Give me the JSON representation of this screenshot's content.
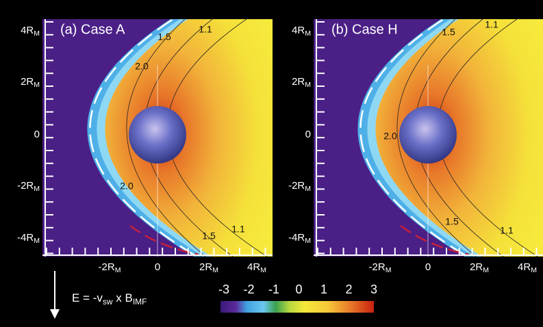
{
  "panels": [
    {
      "title": "(a) Case A",
      "y_ticks": [
        {
          "text": "4R",
          "sub": "M"
        },
        {
          "text": "2R",
          "sub": "M"
        },
        "0",
        {
          "text": "-2R",
          "sub": "M"
        },
        {
          "text": "-4R",
          "sub": "M"
        }
      ],
      "x_ticks": [
        {
          "text": "-2R",
          "sub": "M"
        },
        "0",
        {
          "text": "2R",
          "sub": "M"
        },
        {
          "text": "4R",
          "sub": "M"
        }
      ],
      "contour_labels": [
        "1.5",
        "1.1",
        "2.0",
        "2.0",
        "1.5",
        "1.1"
      ]
    },
    {
      "title": "(b) Case H",
      "y_ticks": [
        {
          "text": "4R",
          "sub": "M"
        },
        {
          "text": "2R",
          "sub": "M"
        },
        "0",
        {
          "text": "-2R",
          "sub": "M"
        },
        {
          "text": "-4R",
          "sub": "M"
        }
      ],
      "x_ticks": [
        {
          "text": "-2R",
          "sub": "M"
        },
        "0",
        {
          "text": "2R",
          "sub": "M"
        },
        {
          "text": "4R",
          "sub": "M"
        }
      ],
      "contour_labels": [
        "1.5",
        "1.1",
        "2.0",
        "1.5",
        "1.1"
      ]
    }
  ],
  "equation": [
    {
      "text": "E = -v",
      "sub": "sw"
    },
    {
      "text": " x B",
      "sub": "IMF"
    }
  ],
  "colorbar": {
    "ticks": [
      "-3",
      "-2",
      "-1",
      "0",
      "1",
      "2",
      "3"
    ]
  }
}
